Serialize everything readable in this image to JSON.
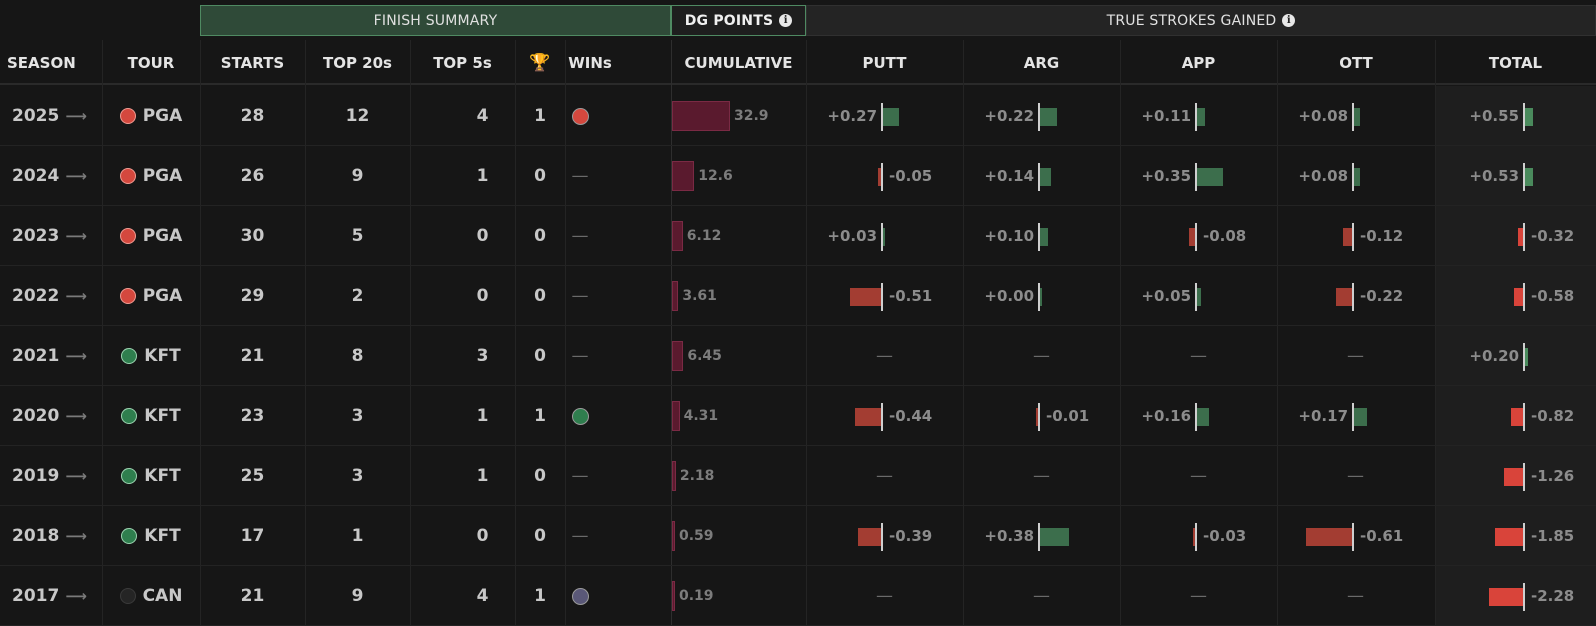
{
  "groups": {
    "finish": "FINISH SUMMARY",
    "dg": "DG POINTS",
    "sg": "TRUE STROKES GAINED",
    "info": "i"
  },
  "columns": {
    "season": "SEASON",
    "tour": "TOUR",
    "starts": "STARTS",
    "top20": "TOP 20s",
    "top5": "TOP 5s",
    "trophy": "🏆",
    "wins": "WINs",
    "cumulative": "CUMULATIVE",
    "putt": "PUTT",
    "arg": "ARG",
    "app": "APP",
    "ott": "OTT",
    "total": "TOTAL"
  },
  "arrow": "⟶",
  "dash": "—",
  "colors": {
    "pga": "#d4483e",
    "kft": "#2f7e4e",
    "can": "#252525",
    "can_win": "#5a5878"
  },
  "rows": [
    {
      "season": "2025",
      "tour": "PGA",
      "tour_key": "pga",
      "starts": "28",
      "top20": "12",
      "top5": "4",
      "wins": "1",
      "win_dot": "pga",
      "cum": 32.9,
      "cum_label": "32.9",
      "putt": 0.27,
      "putt_label": "+0.27",
      "arg": 0.22,
      "arg_label": "+0.22",
      "app": 0.11,
      "app_label": "+0.11",
      "ott": 0.08,
      "ott_label": "+0.08",
      "total": 0.55,
      "total_label": "+0.55"
    },
    {
      "season": "2024",
      "tour": "PGA",
      "tour_key": "pga",
      "starts": "26",
      "top20": "9",
      "top5": "1",
      "wins": "0",
      "win_dot": null,
      "cum": 12.6,
      "cum_label": "12.6",
      "putt": -0.05,
      "putt_label": "-0.05",
      "arg": 0.14,
      "arg_label": "+0.14",
      "app": 0.35,
      "app_label": "+0.35",
      "ott": 0.08,
      "ott_label": "+0.08",
      "total": 0.53,
      "total_label": "+0.53"
    },
    {
      "season": "2023",
      "tour": "PGA",
      "tour_key": "pga",
      "starts": "30",
      "top20": "5",
      "top5": "0",
      "wins": "0",
      "win_dot": null,
      "cum": 6.12,
      "cum_label": "6.12",
      "putt": 0.03,
      "putt_label": "+0.03",
      "arg": 0.1,
      "arg_label": "+0.10",
      "app": -0.08,
      "app_label": "-0.08",
      "ott": -0.12,
      "ott_label": "-0.12",
      "total": -0.32,
      "total_label": "-0.32"
    },
    {
      "season": "2022",
      "tour": "PGA",
      "tour_key": "pga",
      "starts": "29",
      "top20": "2",
      "top5": "0",
      "wins": "0",
      "win_dot": null,
      "cum": 3.61,
      "cum_label": "3.61",
      "putt": -0.51,
      "putt_label": "-0.51",
      "arg": 0.0,
      "arg_label": "+0.00",
      "app": 0.05,
      "app_label": "+0.05",
      "ott": -0.22,
      "ott_label": "-0.22",
      "total": -0.58,
      "total_label": "-0.58"
    },
    {
      "season": "2021",
      "tour": "KFT",
      "tour_key": "kft",
      "starts": "21",
      "top20": "8",
      "top5": "3",
      "wins": "0",
      "win_dot": null,
      "cum": 6.45,
      "cum_label": "6.45",
      "putt": null,
      "putt_label": null,
      "arg": null,
      "arg_label": null,
      "app": null,
      "app_label": null,
      "ott": null,
      "ott_label": null,
      "total": 0.2,
      "total_label": "+0.20"
    },
    {
      "season": "2020",
      "tour": "KFT",
      "tour_key": "kft",
      "starts": "23",
      "top20": "3",
      "top5": "1",
      "wins": "1",
      "win_dot": "kft",
      "cum": 4.31,
      "cum_label": "4.31",
      "putt": -0.44,
      "putt_label": "-0.44",
      "arg": -0.01,
      "arg_label": "-0.01",
      "app": 0.16,
      "app_label": "+0.16",
      "ott": 0.17,
      "ott_label": "+0.17",
      "total": -0.82,
      "total_label": "-0.82"
    },
    {
      "season": "2019",
      "tour": "KFT",
      "tour_key": "kft",
      "starts": "25",
      "top20": "3",
      "top5": "1",
      "wins": "0",
      "win_dot": null,
      "cum": 2.18,
      "cum_label": "2.18",
      "putt": null,
      "putt_label": null,
      "arg": null,
      "arg_label": null,
      "app": null,
      "app_label": null,
      "ott": null,
      "ott_label": null,
      "total": -1.26,
      "total_label": "-1.26"
    },
    {
      "season": "2018",
      "tour": "KFT",
      "tour_key": "kft",
      "starts": "17",
      "top20": "1",
      "top5": "0",
      "wins": "0",
      "win_dot": null,
      "cum": 0.59,
      "cum_label": "0.59",
      "putt": -0.39,
      "putt_label": "-0.39",
      "arg": 0.38,
      "arg_label": "+0.38",
      "app": -0.03,
      "app_label": "-0.03",
      "ott": -0.61,
      "ott_label": "-0.61",
      "total": -1.85,
      "total_label": "-1.85"
    },
    {
      "season": "2017",
      "tour": "CAN",
      "tour_key": "can",
      "starts": "21",
      "top20": "9",
      "top5": "4",
      "wins": "1",
      "win_dot": "can_win",
      "cum": 0.19,
      "cum_label": "0.19",
      "putt": null,
      "putt_label": null,
      "arg": null,
      "arg_label": null,
      "app": null,
      "app_label": null,
      "ott": null,
      "ott_label": null,
      "total": -2.28,
      "total_label": "-2.28"
    }
  ]
}
